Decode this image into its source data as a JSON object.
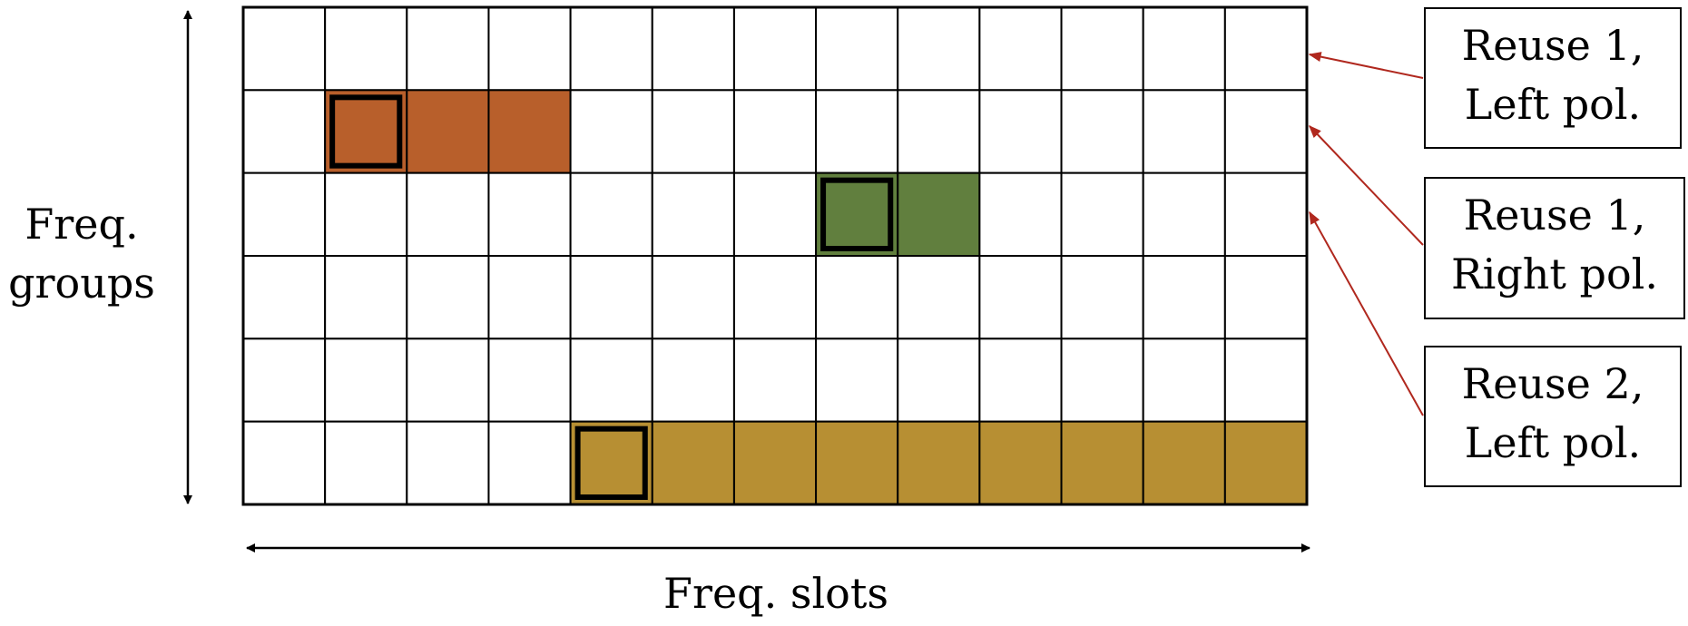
{
  "axes": {
    "x_label": "Freq. slots",
    "y_label_line1": "Freq.",
    "y_label_line2": "groups"
  },
  "grid": {
    "columns": 13,
    "rows": 6,
    "cell_fill": "#ffffff",
    "line_color": "#000000"
  },
  "allocations": [
    {
      "row": 2,
      "start_col": 2,
      "length": 3,
      "color": "#B85F2B",
      "marked_col": 2
    },
    {
      "row": 3,
      "start_col": 8,
      "length": 2,
      "color": "#617F3E",
      "marked_col": 8
    },
    {
      "row": 6,
      "start_col": 5,
      "length": 9,
      "color": "#B78F33",
      "marked_col": 5
    }
  ],
  "legend": [
    {
      "line1": "Reuse 1,",
      "line2": "Left pol.",
      "points_to_row_boundary": 1
    },
    {
      "line1": "Reuse 1,",
      "line2": "Right pol.",
      "points_to_row_boundary": 2
    },
    {
      "line1": "Reuse 2,",
      "line2": "Left pol.",
      "points_to_row_boundary": 3
    }
  ],
  "colors": {
    "arrow": "#B0281E",
    "axis": "#000000"
  }
}
